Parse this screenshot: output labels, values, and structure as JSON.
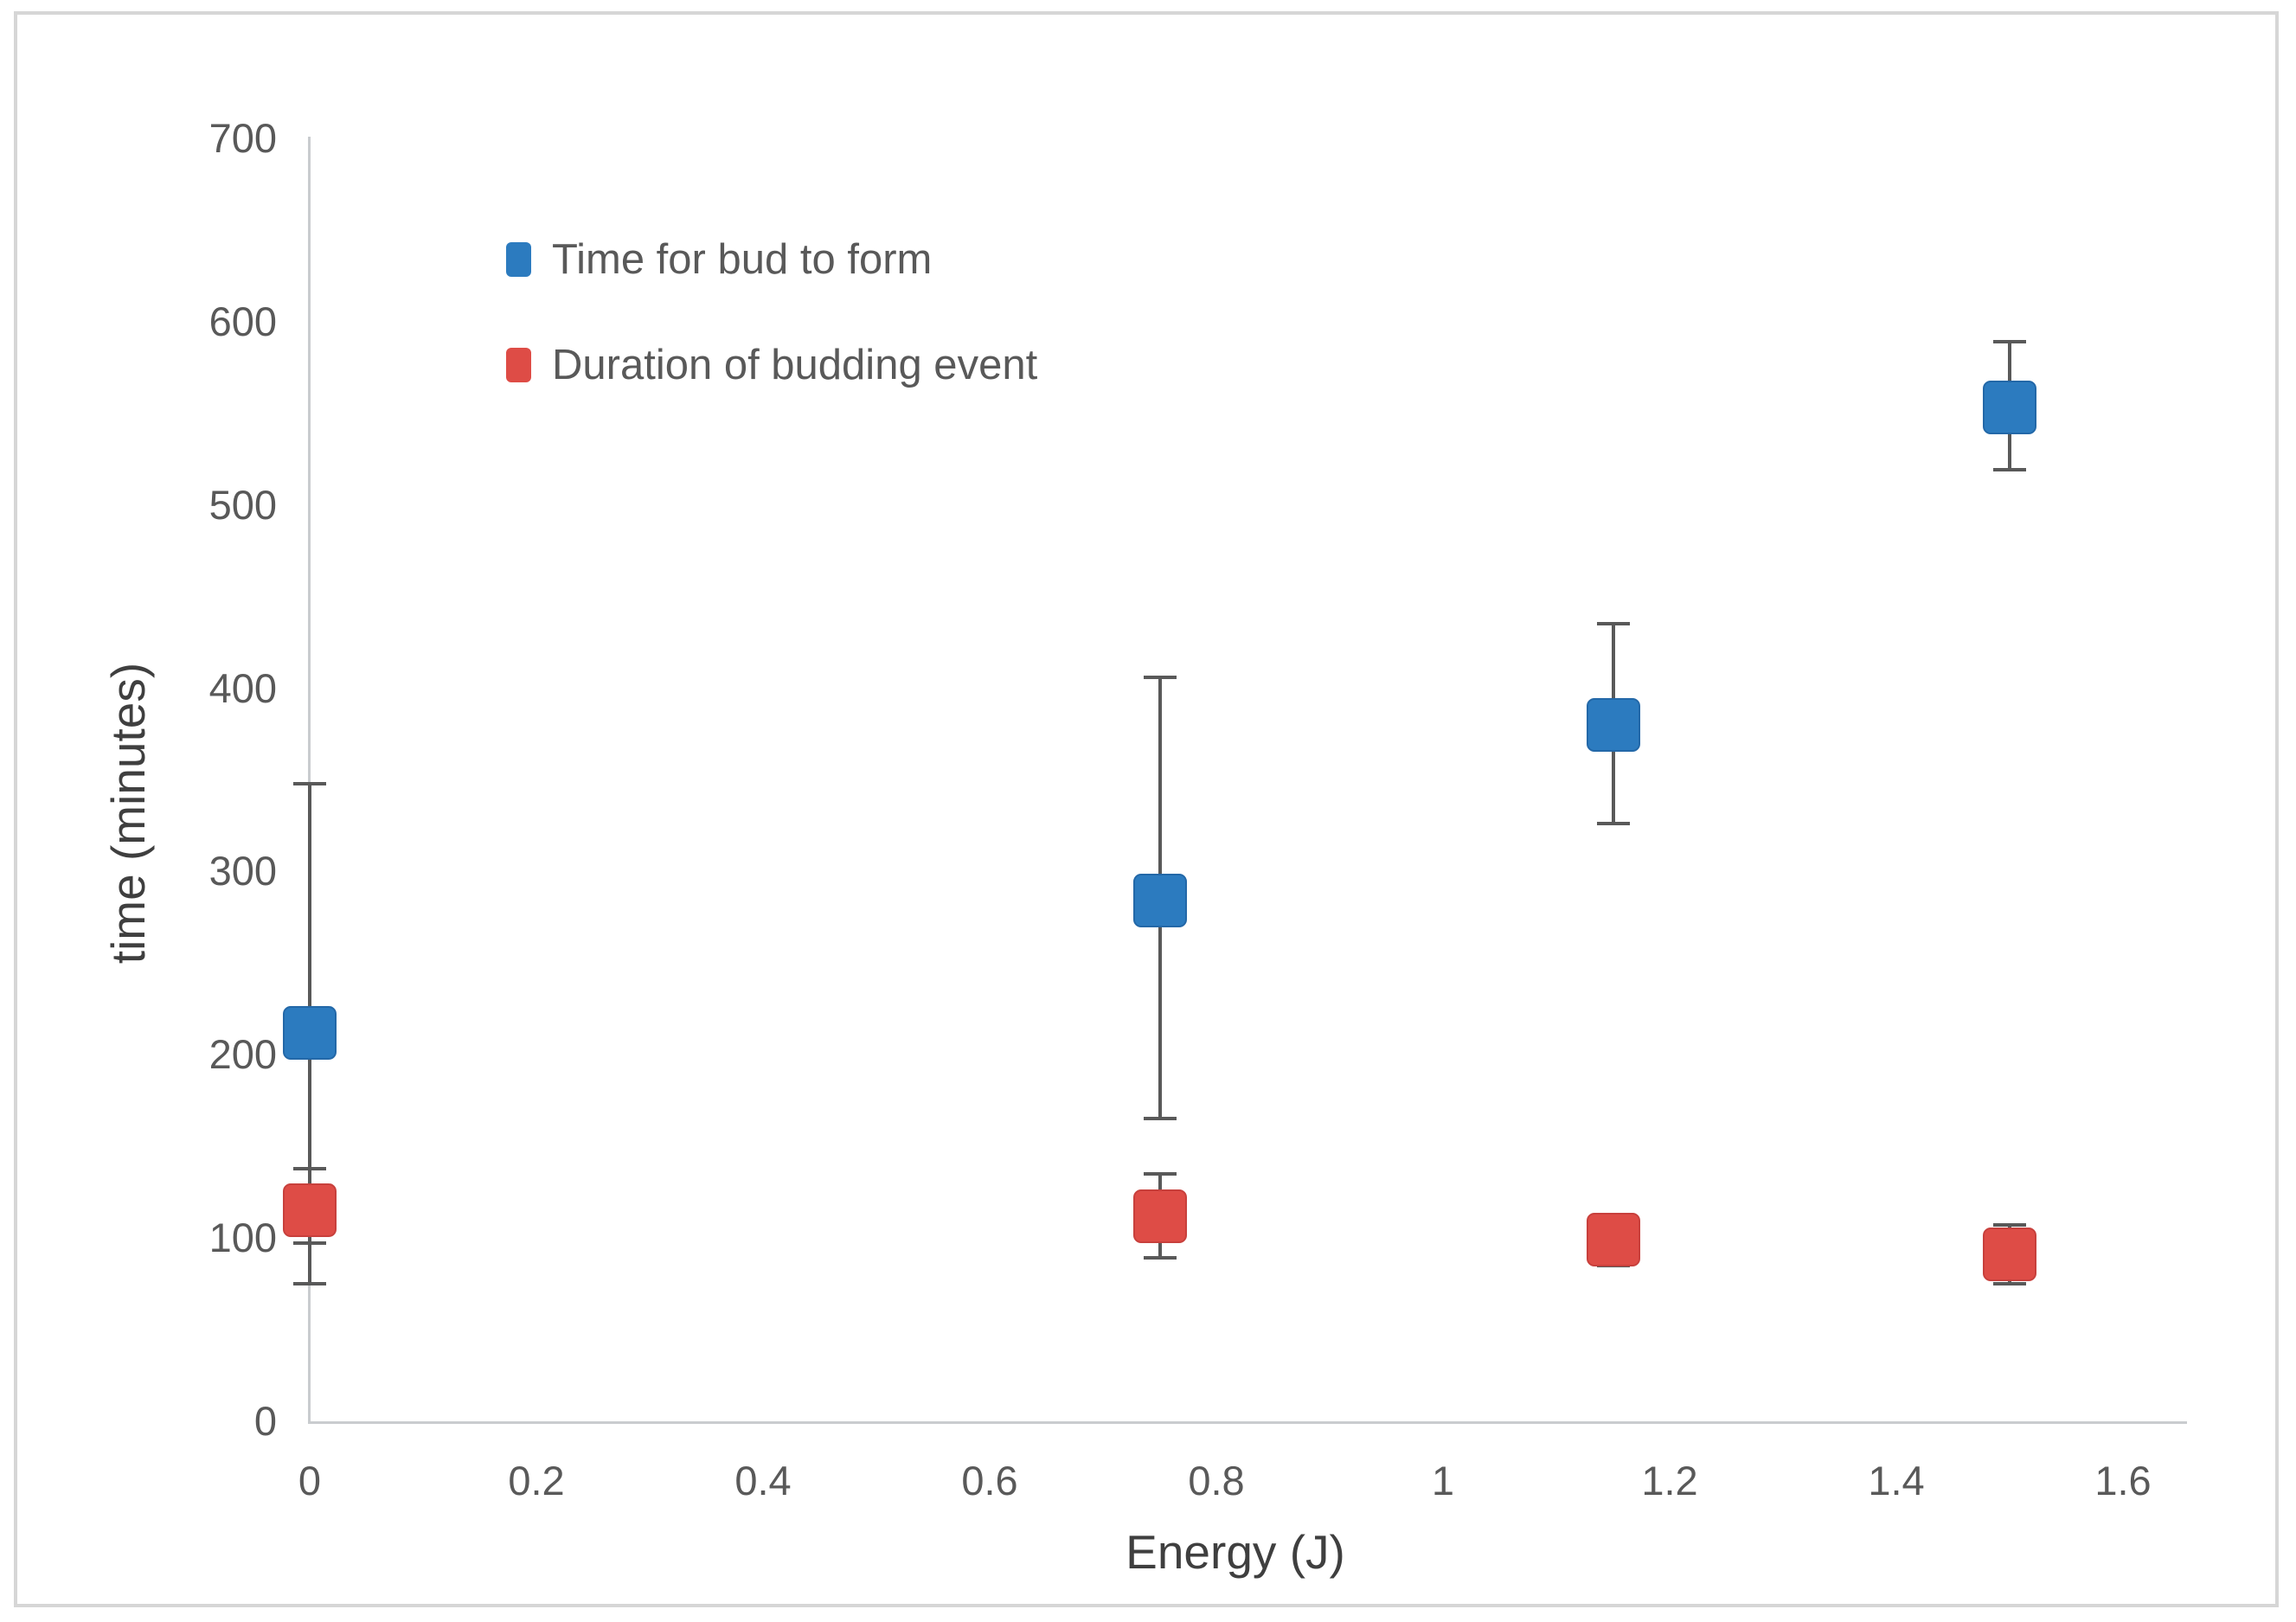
{
  "chart_data": {
    "type": "scatter",
    "title": "",
    "xlabel": "Energy (J)",
    "ylabel": "time (minutes)",
    "xlim": [
      0,
      1.6
    ],
    "ylim": [
      0,
      700
    ],
    "x_ticks": [
      0,
      0.2,
      0.4,
      0.6,
      0.8,
      1,
      1.2,
      1.4,
      1.6
    ],
    "x_tick_labels": [
      "0",
      "0.2",
      "0.4",
      "0.6",
      "0.8",
      "1",
      "1.2",
      "1.4",
      "1.6"
    ],
    "y_ticks": [
      0,
      100,
      200,
      300,
      400,
      500,
      600,
      700
    ],
    "y_tick_labels": [
      "0",
      "100",
      "200",
      "300",
      "400",
      "500",
      "600",
      "700"
    ],
    "grid": false,
    "legend_position": "upper-left-inside",
    "error_bar_color": "#595959",
    "axis_line_color": "#c9cccf",
    "series": [
      {
        "name": "Time for bud to form",
        "color": "#2c7bbf",
        "border_color": "#2368a8",
        "marker": "square",
        "points": [
          {
            "x": 0,
            "y": 212,
            "err_up": 136,
            "err_down": 137
          },
          {
            "x": 0.75,
            "y": 284,
            "err_up": 122,
            "err_down": 119
          },
          {
            "x": 1.15,
            "y": 380,
            "err_up": 55,
            "err_down": 54
          },
          {
            "x": 1.5,
            "y": 553,
            "err_up": 36,
            "err_down": 34
          }
        ]
      },
      {
        "name": "Duration of budding event",
        "color": "#de4c46",
        "border_color": "#c8403c",
        "marker": "square",
        "points": [
          {
            "x": 0,
            "y": 115,
            "err_up": 23,
            "err_down": 18
          },
          {
            "x": 0.75,
            "y": 112,
            "err_up": 23,
            "err_down": 23
          },
          {
            "x": 1.15,
            "y": 99,
            "err_up": 14,
            "err_down": 14
          },
          {
            "x": 1.5,
            "y": 91,
            "err_up": 16,
            "err_down": 16
          }
        ]
      }
    ]
  }
}
